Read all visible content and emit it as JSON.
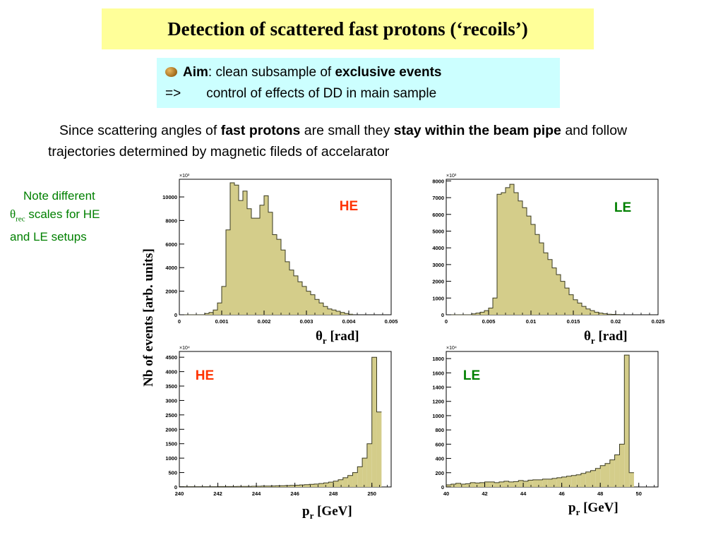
{
  "title": "Detection of scattered fast protons (‘recoils’)",
  "aim": {
    "label": "Aim",
    "text": ": clean subsample of ",
    "bold": "exclusive events",
    "arrow": "=>",
    "line2": "control of effects of DD in main sample"
  },
  "intro": {
    "p1": "Since scattering angles of ",
    "b1": "fast protons",
    "p2": " are small they ",
    "b2": "stay within the beam pipe",
    "p3": " and follow trajectories determined by magnetic fileds of accelarator"
  },
  "note": {
    "line1": "Note different",
    "theta": "θ",
    "sub": "rec",
    "line2rest": " scales for HE",
    "line3": "and LE setups"
  },
  "ylabel": "Nb of events [arb. units]",
  "colors": {
    "fill": "#d4cd8a",
    "stroke": "#3a3a20",
    "he": "#ff3300",
    "le": "#008000",
    "title_bg": "#ffff99",
    "aim_bg": "#ccffff"
  },
  "chart_data": [
    {
      "type": "bar",
      "label": "HE",
      "xlabel_main": "θ",
      "xlabel_sub": "r",
      "xlabel_unit": " [rad]",
      "multiplier": "×10³",
      "xlim": [
        0,
        0.005
      ],
      "ylim": [
        0,
        11500
      ],
      "xticks": [
        0,
        0.001,
        0.002,
        0.003,
        0.004,
        0.005
      ],
      "xtick_labels": [
        "0",
        "0.001",
        "0.002",
        "0.003",
        "0.004",
        "0.005"
      ],
      "yticks": [
        0,
        2000,
        4000,
        6000,
        8000,
        10000
      ],
      "ytick_labels": [
        "0",
        "2000",
        "4000",
        "6000",
        "8000",
        "10000"
      ],
      "bin_start": 0.0001,
      "bin_width": 0.0001,
      "values": [
        0,
        0,
        0,
        0,
        0,
        100,
        200,
        400,
        1000,
        2400,
        7200,
        11200,
        11000,
        9700,
        10500,
        9000,
        8200,
        8200,
        9300,
        10100,
        8700,
        6800,
        6400,
        5500,
        4500,
        3800,
        3300,
        2800,
        2400,
        2000,
        1700,
        1300,
        1000,
        700,
        500,
        400,
        300,
        200,
        100,
        50
      ]
    },
    {
      "type": "bar",
      "label": "LE",
      "xlabel_main": "θ",
      "xlabel_sub": "r",
      "xlabel_unit": " [rad]",
      "multiplier": "×10³",
      "xlim": [
        0,
        0.025
      ],
      "ylim": [
        0,
        8100
      ],
      "xticks": [
        0,
        0.005,
        0.01,
        0.015,
        0.02,
        0.025
      ],
      "xtick_labels": [
        "0",
        "0.005",
        "0.01",
        "0.015",
        "0.02",
        "0.025"
      ],
      "yticks": [
        0,
        1000,
        2000,
        3000,
        4000,
        5000,
        6000,
        7000,
        8000
      ],
      "ytick_labels": [
        "0",
        "1000",
        "2000",
        "3000",
        "4000",
        "5000",
        "6000",
        "7000",
        "8000"
      ],
      "bin_start": 0.0005,
      "bin_width": 0.0005,
      "values": [
        0,
        0,
        0,
        0,
        0,
        50,
        100,
        150,
        250,
        400,
        1000,
        7200,
        7300,
        7600,
        7800,
        7300,
        6800,
        6400,
        5900,
        5400,
        4800,
        4300,
        3700,
        3300,
        2800,
        2400,
        2000,
        1600,
        1200,
        900,
        700,
        500,
        350,
        250,
        150,
        100,
        60,
        30,
        20,
        10
      ]
    },
    {
      "type": "bar",
      "label": "HE",
      "xlabel_main": "p",
      "xlabel_sub": "r",
      "xlabel_unit": " [GeV]",
      "multiplier": "×10⁴",
      "xlim": [
        240,
        251
      ],
      "ylim": [
        0,
        4700
      ],
      "xticks": [
        240,
        242,
        244,
        246,
        248,
        250
      ],
      "xtick_labels": [
        "240",
        "242",
        "244",
        "246",
        "248",
        "250"
      ],
      "yticks": [
        0,
        500,
        1000,
        1500,
        2000,
        2500,
        3000,
        3500,
        4000,
        4500
      ],
      "ytick_labels": [
        "0",
        "500",
        "1000",
        "1500",
        "2000",
        "2500",
        "3000",
        "3500",
        "4000",
        "4500"
      ],
      "bin_start": 240,
      "bin_width": 0.25,
      "values": [
        10,
        10,
        10,
        10,
        10,
        10,
        10,
        10,
        15,
        15,
        15,
        15,
        20,
        20,
        20,
        25,
        25,
        30,
        30,
        35,
        40,
        45,
        50,
        55,
        60,
        70,
        80,
        90,
        100,
        120,
        140,
        170,
        200,
        250,
        320,
        400,
        500,
        700,
        1000,
        1500,
        4500,
        2600
      ]
    },
    {
      "type": "bar",
      "label": "LE",
      "xlabel_main": "p",
      "xlabel_sub": "r",
      "xlabel_unit": " [GeV]",
      "multiplier": "×10⁴",
      "xlim": [
        40,
        51
      ],
      "ylim": [
        0,
        1900
      ],
      "xticks": [
        40,
        42,
        44,
        46,
        48,
        50
      ],
      "xtick_labels": [
        "40",
        "42",
        "44",
        "46",
        "48",
        "50"
      ],
      "yticks": [
        0,
        200,
        400,
        600,
        800,
        1000,
        1200,
        1400,
        1600,
        1800
      ],
      "ytick_labels": [
        "0",
        "200",
        "400",
        "600",
        "800",
        "1000",
        "1200",
        "1400",
        "1600",
        "1800"
      ],
      "bin_start": 40,
      "bin_width": 0.25,
      "values": [
        30,
        40,
        50,
        40,
        45,
        60,
        55,
        60,
        70,
        70,
        60,
        70,
        80,
        70,
        75,
        90,
        80,
        95,
        100,
        100,
        110,
        110,
        120,
        130,
        140,
        150,
        160,
        170,
        190,
        210,
        230,
        260,
        300,
        330,
        380,
        450,
        600,
        1850,
        200
      ]
    }
  ]
}
